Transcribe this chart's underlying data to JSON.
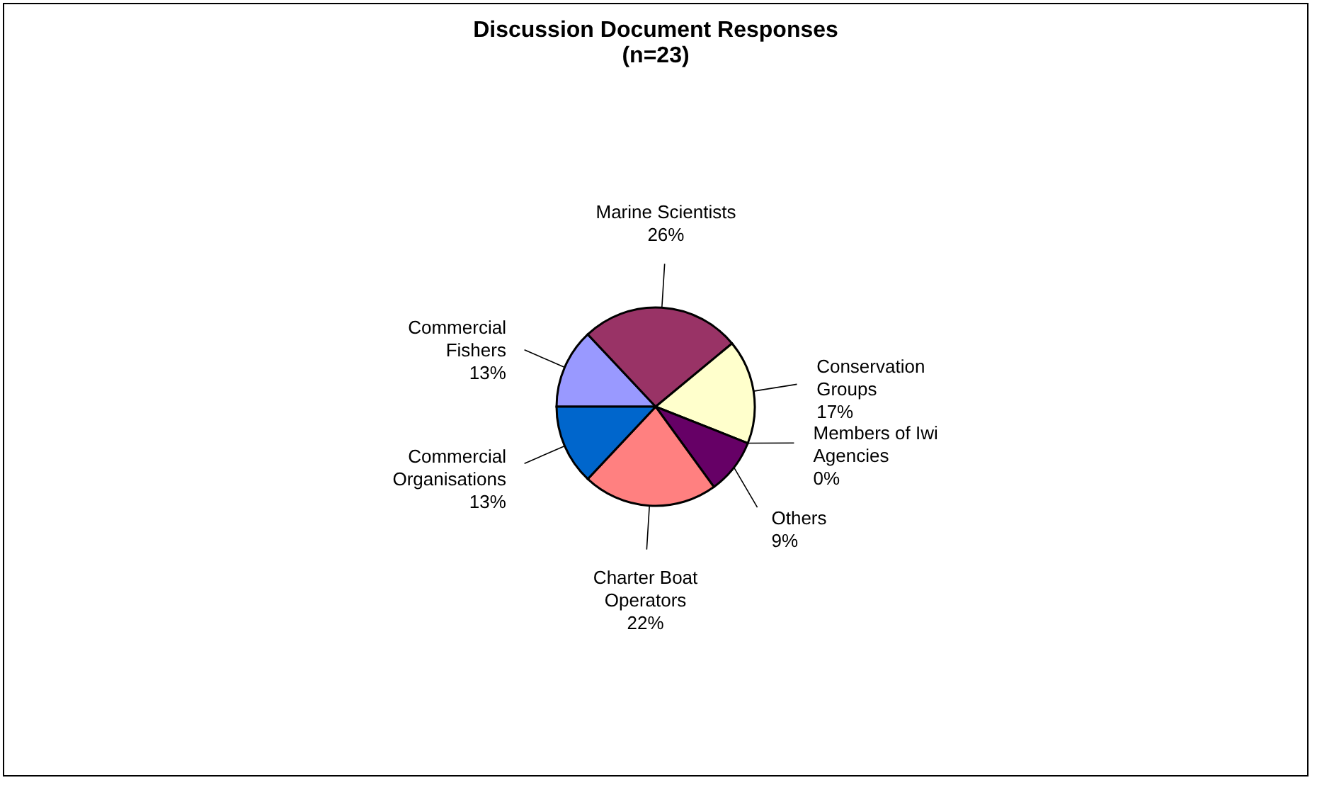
{
  "chart_data": {
    "type": "pie",
    "title": "Discussion Document Responses\n(n=23)",
    "categories": [
      "Commercial Fishers",
      "Marine Scientists",
      "Conservation Groups",
      "Members of Iwi Agencies",
      "Others",
      "Charter Boat Operators",
      "Commercial Organisations"
    ],
    "values": [
      13,
      26,
      17,
      0,
      9,
      22,
      13
    ],
    "value_labels": [
      "13%",
      "26%",
      "17%",
      "0%",
      "9%",
      "22%",
      "13%"
    ],
    "colors": [
      "#9999ff",
      "#993366",
      "#ffffcc",
      "#ccffff",
      "#660066",
      "#ff8080",
      "#0066cc"
    ]
  }
}
